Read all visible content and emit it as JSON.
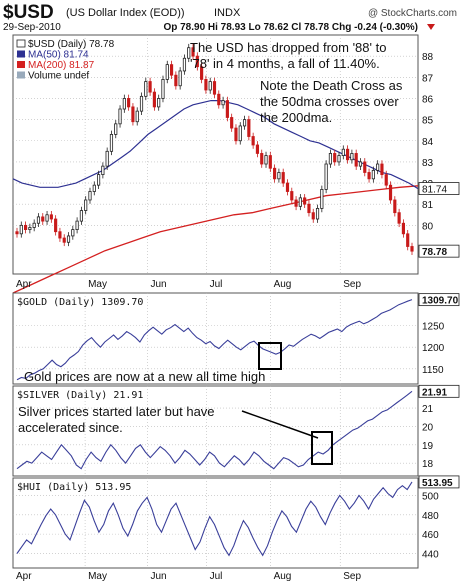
{
  "header": {
    "symbol": "$USD",
    "name": "(US Dollar Index (EOD))",
    "exchange": "INDX",
    "watermark": "@ StockCharts.com",
    "date": "29-Sep-2010",
    "quote": "Op 78.90  Hi 78.93  Lo 78.62  Cl 78.78  Chg -0.24 (-0.30%)"
  },
  "colors": {
    "ma50": "#2e3192",
    "ma200": "#d42020",
    "up": "#222222",
    "down": "#c81a1a",
    "line": "#3a3f9a",
    "grid": "#b8b8b8",
    "frame": "#555555",
    "bg": "#ffffff"
  },
  "chart_data": [
    {
      "type": "candlestick",
      "title": "$USD (Daily) 78.78",
      "legend": [
        "$USD (Daily) 78.78",
        "MA(50) 81.74",
        "MA(200) 81.87",
        "Volume undef"
      ],
      "annotations": [
        "The USD has dropped from '88' to",
        "'78' in 4 months, a fall of 11.40%.",
        "Note the Death Cross as",
        "the 50dma crosses over",
        "the 200dma."
      ],
      "x_labels": [
        "Apr",
        "May",
        "Jun",
        "Jul",
        "Aug",
        "Sep"
      ],
      "y_ticks": [
        80,
        81,
        82,
        83,
        84,
        85,
        86,
        87,
        88
      ],
      "ylim": [
        77.7,
        89.0
      ],
      "last_value_labels": [
        "81.74",
        "78.78"
      ],
      "close": [
        79.6,
        80.0,
        79.8,
        79.9,
        80.1,
        80.4,
        80.2,
        80.5,
        80.3,
        79.7,
        79.4,
        79.2,
        79.5,
        79.8,
        80.2,
        80.7,
        81.2,
        81.6,
        81.9,
        82.4,
        82.8,
        83.5,
        84.3,
        84.8,
        85.5,
        86.0,
        85.6,
        84.9,
        85.4,
        86.1,
        86.8,
        86.3,
        85.6,
        86.0,
        86.9,
        87.6,
        87.1,
        86.6,
        87.3,
        87.9,
        88.4,
        88.0,
        87.5,
        86.9,
        86.4,
        86.8,
        86.2,
        85.7,
        85.9,
        85.1,
        84.6,
        84.0,
        84.7,
        85.0,
        84.2,
        83.8,
        83.4,
        82.9,
        83.3,
        82.7,
        82.2,
        82.5,
        82.0,
        81.6,
        81.2,
        80.9,
        81.3,
        81.0,
        80.6,
        80.3,
        80.8,
        81.7,
        82.9,
        83.4,
        83.0,
        83.3,
        83.6,
        83.1,
        83.4,
        82.8,
        83.0,
        82.5,
        82.2,
        82.6,
        82.9,
        82.4,
        81.9,
        81.2,
        80.6,
        80.1,
        79.6,
        79.0,
        78.78
      ],
      "ma50": [
        82.2,
        82.0,
        81.9,
        81.8,
        81.8,
        81.8,
        81.9,
        82.0,
        82.2,
        82.4,
        82.6,
        82.9,
        83.2,
        83.5,
        83.9,
        84.3,
        84.6,
        84.9,
        85.2,
        85.5,
        85.7,
        85.8,
        85.9,
        85.9,
        85.8,
        85.7,
        85.5,
        85.3,
        85.1,
        84.8,
        84.6,
        84.4,
        84.2,
        84.0,
        83.9,
        83.7,
        83.5,
        83.3,
        83.1,
        82.9,
        82.7,
        82.5,
        82.4,
        82.2,
        82.0,
        81.74
      ],
      "ma200": [
        76.8,
        77.2,
        77.6,
        78.0,
        78.4,
        78.8,
        79.1,
        79.4,
        79.7,
        79.9,
        80.1,
        80.3,
        80.5,
        80.6,
        80.8,
        81.0,
        81.2,
        81.4,
        81.5,
        81.6,
        81.7,
        81.8,
        81.87
      ]
    },
    {
      "type": "line",
      "title": "$GOLD (Daily) 1309.70",
      "last_value_label": "1309.70",
      "y_ticks": [
        1150,
        1200,
        1250
      ],
      "ylim": [
        1115,
        1325
      ],
      "annotation": "Gold prices are now at a new all time high",
      "values": [
        1125,
        1130,
        1128,
        1136,
        1140,
        1146,
        1150,
        1160,
        1170,
        1160,
        1155,
        1163,
        1175,
        1182,
        1190,
        1205,
        1215,
        1222,
        1210,
        1200,
        1212,
        1220,
        1228,
        1218,
        1226,
        1236,
        1230,
        1222,
        1212,
        1228,
        1238,
        1246,
        1238,
        1230,
        1240,
        1245,
        1252,
        1244,
        1236,
        1244,
        1232,
        1222,
        1216,
        1208,
        1213,
        1203,
        1197,
        1207,
        1216,
        1208,
        1200,
        1194,
        1202,
        1210,
        1214,
        1204,
        1196,
        1192,
        1188,
        1184,
        1188,
        1196,
        1205,
        1202,
        1210,
        1218,
        1224,
        1230,
        1226,
        1220,
        1227,
        1234,
        1238,
        1242,
        1236,
        1246,
        1252,
        1256,
        1260,
        1254,
        1258,
        1264,
        1270,
        1278,
        1282,
        1286,
        1292,
        1298,
        1302,
        1306,
        1309.7
      ]
    },
    {
      "type": "line",
      "title": "$SILVER (Daily) 21.91",
      "last_value_label": "21.91",
      "y_ticks": [
        18,
        19,
        20,
        21
      ],
      "ylim": [
        17.3,
        22.2
      ],
      "annotation": [
        "Silver prices started later but have",
        "accelerated since."
      ],
      "values": [
        17.7,
        17.9,
        18.1,
        18.0,
        18.3,
        18.6,
        18.4,
        18.2,
        18.6,
        19.0,
        18.7,
        18.4,
        17.9,
        17.7,
        18.2,
        18.6,
        18.3,
        18.1,
        18.6,
        19.0,
        18.7,
        18.3,
        18.0,
        18.4,
        18.8,
        19.0,
        18.6,
        18.3,
        18.6,
        18.9,
        18.7,
        18.4,
        18.0,
        18.3,
        18.7,
        18.5,
        18.2,
        17.9,
        18.2,
        18.6,
        18.4,
        18.0,
        17.8,
        18.1,
        18.4,
        18.2,
        17.9,
        18.2,
        18.6,
        18.4,
        18.1,
        17.9,
        17.7,
        18.0,
        18.3,
        18.2,
        18.0,
        17.8,
        17.9,
        18.2,
        18.4,
        18.6,
        18.5,
        18.7,
        19.0,
        19.2,
        19.4,
        19.6,
        19.8,
        19.9,
        20.1,
        20.3,
        20.4,
        20.6,
        20.8,
        20.9,
        21.1,
        21.3,
        21.5,
        21.7,
        21.91
      ]
    },
    {
      "type": "line",
      "title": "$HUI (Daily) 513.95",
      "last_value_label": "513.95",
      "y_ticks": [
        440,
        460,
        480,
        500
      ],
      "ylim": [
        425,
        518
      ],
      "values": [
        440,
        447,
        454,
        450,
        460,
        470,
        479,
        486,
        480,
        470,
        460,
        454,
        468,
        482,
        495,
        488,
        474,
        462,
        470,
        484,
        492,
        480,
        466,
        458,
        470,
        484,
        492,
        498,
        486,
        470,
        462,
        474,
        486,
        492,
        480,
        468,
        456,
        444,
        452,
        466,
        478,
        470,
        458,
        446,
        438,
        448,
        462,
        474,
        467,
        456,
        446,
        438,
        448,
        462,
        474,
        484,
        478,
        468,
        462,
        474,
        486,
        494,
        488,
        478,
        470,
        482,
        492,
        500,
        494,
        486,
        492,
        500,
        494,
        486,
        496,
        502,
        508,
        502,
        498,
        506,
        510,
        506,
        513.95
      ]
    }
  ]
}
